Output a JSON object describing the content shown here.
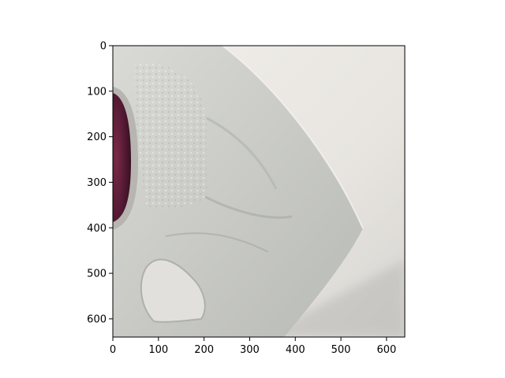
{
  "chart_data": {
    "type": "image",
    "title": "",
    "xlabel": "",
    "ylabel": "",
    "xlim": [
      0,
      640
    ],
    "ylim": [
      640,
      0
    ],
    "x_ticks": [
      {
        "value": 0,
        "label": "0"
      },
      {
        "value": 100,
        "label": "100"
      },
      {
        "value": 200,
        "label": "200"
      },
      {
        "value": 300,
        "label": "300"
      },
      {
        "value": 400,
        "label": "400"
      },
      {
        "value": 500,
        "label": "500"
      },
      {
        "value": 600,
        "label": "600"
      }
    ],
    "y_ticks": [
      {
        "value": 0,
        "label": "0"
      },
      {
        "value": 100,
        "label": "100"
      },
      {
        "value": 200,
        "label": "200"
      },
      {
        "value": 300,
        "label": "300"
      },
      {
        "value": 400,
        "label": "400"
      },
      {
        "value": 500,
        "label": "500"
      },
      {
        "value": 600,
        "label": "600"
      }
    ],
    "image_description_icon": "plastic-bottle-photo",
    "colors": {
      "background": "#e9e6e2",
      "bottle": "#cfd0cb",
      "cap": "#5e1f38"
    }
  }
}
